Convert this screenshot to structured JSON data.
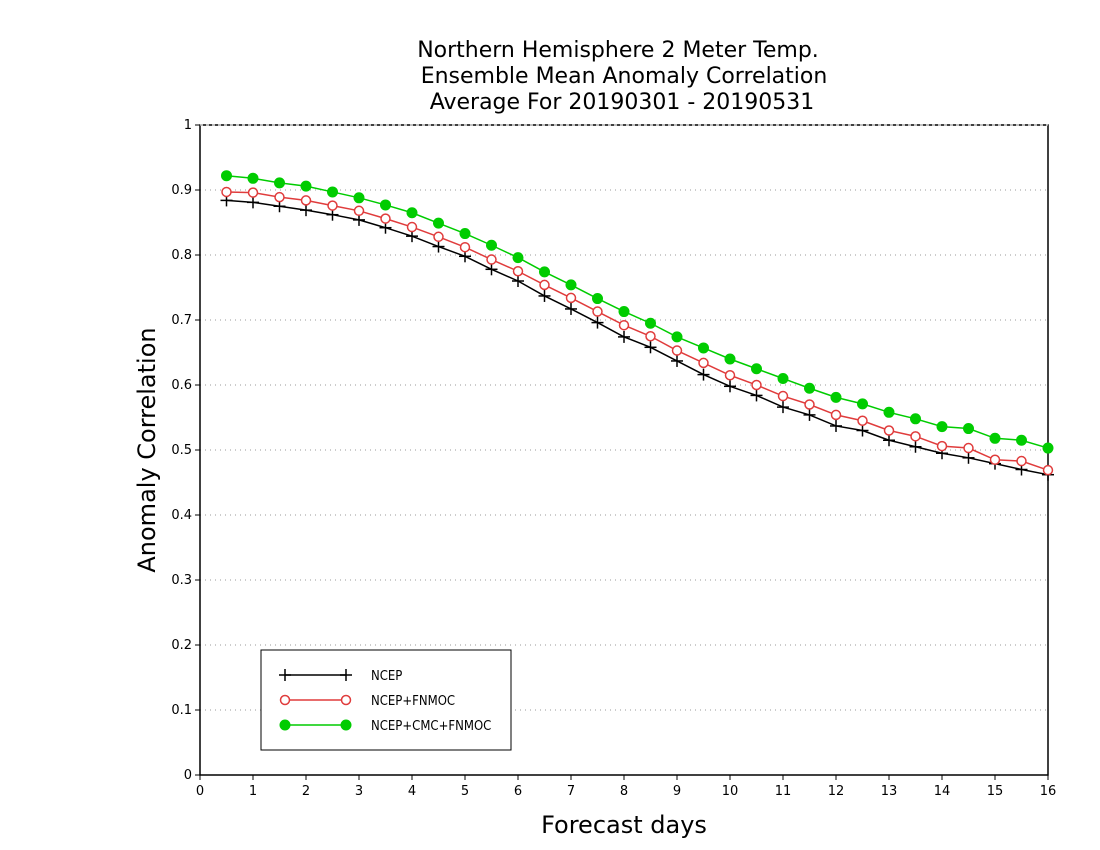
{
  "chart_data": {
    "type": "line",
    "title_lines": [
      "Northern Hemisphere 2 Meter Temp.",
      "Ensemble Mean Anomaly Correlation",
      "Average For 20190301 - 20190531"
    ],
    "xlabel": "Forecast days",
    "ylabel": "Anomaly Correlation",
    "xlim": [
      0,
      16
    ],
    "ylim": [
      0,
      1
    ],
    "xticks": [
      "0",
      "1",
      "2",
      "3",
      "4",
      "5",
      "6",
      "7",
      "8",
      "9",
      "10",
      "11",
      "12",
      "13",
      "14",
      "15",
      "16"
    ],
    "yticks": [
      "0",
      "0.1",
      "0.2",
      "0.3",
      "0.4",
      "0.5",
      "0.6",
      "0.7",
      "0.8",
      "0.9",
      "1"
    ],
    "grid": "dotted horizontal",
    "legend_position": "lower-left",
    "x": [
      0.5,
      1,
      1.5,
      2,
      2.5,
      3,
      3.5,
      4,
      4.5,
      5,
      5.5,
      6,
      6.5,
      7,
      7.5,
      8,
      8.5,
      9,
      9.5,
      10,
      10.5,
      11,
      11.5,
      12,
      12.5,
      13,
      13.5,
      14,
      14.5,
      15,
      15.5,
      16
    ],
    "series": [
      {
        "name": "NCEP",
        "color": "#000000",
        "marker": "plus",
        "values": [
          0.884,
          0.881,
          0.875,
          0.869,
          0.862,
          0.854,
          0.842,
          0.829,
          0.813,
          0.798,
          0.778,
          0.76,
          0.737,
          0.717,
          0.696,
          0.674,
          0.658,
          0.637,
          0.616,
          0.598,
          0.584,
          0.566,
          0.554,
          0.537,
          0.53,
          0.515,
          0.505,
          0.495,
          0.488,
          0.479,
          0.47,
          0.462
        ]
      },
      {
        "name": "NCEP+FNMOC",
        "color": "#e03c3c",
        "marker": "open-circle",
        "values": [
          0.897,
          0.896,
          0.889,
          0.884,
          0.876,
          0.868,
          0.856,
          0.843,
          0.828,
          0.812,
          0.793,
          0.775,
          0.754,
          0.734,
          0.713,
          0.692,
          0.675,
          0.653,
          0.634,
          0.615,
          0.6,
          0.583,
          0.57,
          0.554,
          0.545,
          0.53,
          0.521,
          0.506,
          0.503,
          0.485,
          0.483,
          0.469
        ]
      },
      {
        "name": "NCEP+CMC+FNMOC",
        "color": "#00cc00",
        "marker": "filled-circle",
        "values": [
          0.922,
          0.918,
          0.911,
          0.906,
          0.897,
          0.888,
          0.877,
          0.865,
          0.849,
          0.833,
          0.815,
          0.796,
          0.774,
          0.754,
          0.733,
          0.713,
          0.695,
          0.674,
          0.657,
          0.64,
          0.625,
          0.61,
          0.595,
          0.581,
          0.571,
          0.558,
          0.548,
          0.536,
          0.533,
          0.518,
          0.515,
          0.503
        ]
      }
    ]
  }
}
